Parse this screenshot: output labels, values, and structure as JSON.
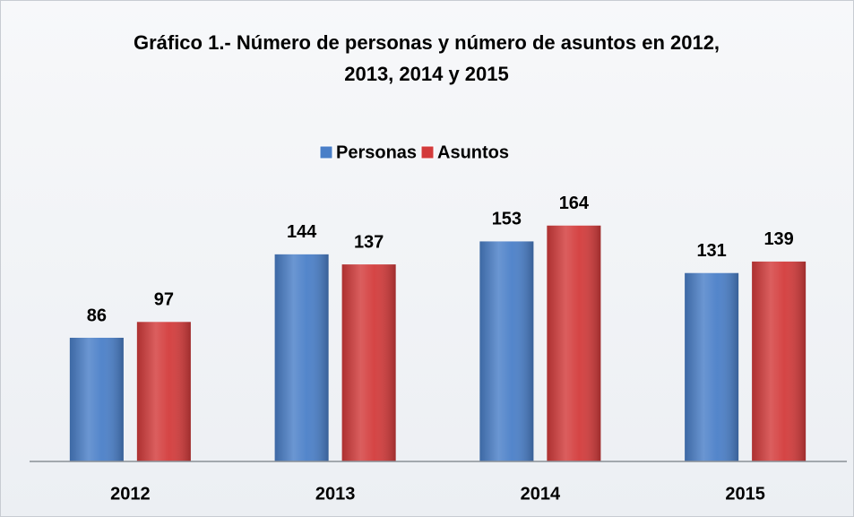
{
  "chart_data": {
    "type": "bar",
    "title": "Gráfico 1.- Número de personas y número de asuntos en 2012, 2013, 2014 y 2015",
    "categories": [
      "2012",
      "2013",
      "2014",
      "2015"
    ],
    "series": [
      {
        "name": "Personas",
        "color": "#4a7fc8",
        "values": [
          86,
          144,
          153,
          131
        ]
      },
      {
        "name": "Asuntos",
        "color": "#d33b3b",
        "values": [
          97,
          137,
          164,
          139
        ]
      }
    ],
    "legend": "top"
  }
}
